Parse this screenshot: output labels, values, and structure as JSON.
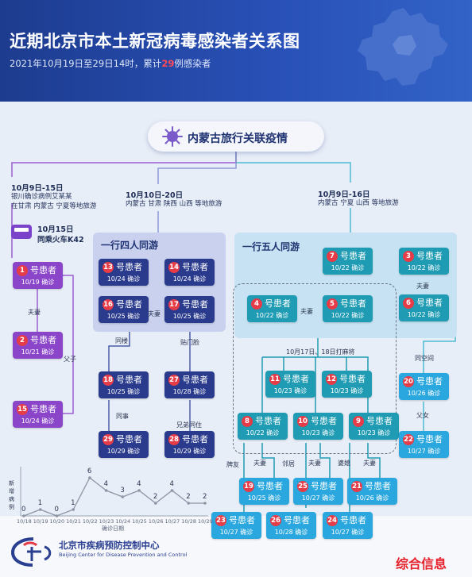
{
  "header": {
    "title": "近期北京市本土新冠病毒感染者关系图",
    "subtitle_prefix": "2021年10月19日至29日14时，累计",
    "subtitle_count": "29",
    "subtitle_suffix": "例感染者"
  },
  "root_label": "内蒙古旅行关联疫情",
  "branches": {
    "left": {
      "date": "10月9日-15日",
      "line1": "银川确诊病例艾某某",
      "line2": "在甘肃 内蒙古 宁夏等地旅游"
    },
    "middle": {
      "date": "10月10日-20日",
      "line1": "内蒙古 甘肃 陕西 山西 等地旅游"
    },
    "right": {
      "date": "10月9日-16日",
      "line1": "内蒙古 宁夏 山西 等地旅游"
    }
  },
  "train": {
    "date": "10月15日",
    "text": "同乘火车K42"
  },
  "groups": {
    "four": "一行四人同游",
    "five": "一行五人同游",
    "mahjong": "10月17日、18日打麻将"
  },
  "patient_word": "号患者",
  "patients": [
    {
      "id": "p1",
      "num": "1",
      "date": "10/19 确诊"
    },
    {
      "id": "p2",
      "num": "2",
      "date": "10/21 确诊"
    },
    {
      "id": "p15",
      "num": "15",
      "date": "10/24 确诊"
    },
    {
      "id": "p13",
      "num": "13",
      "date": "10/24 确诊"
    },
    {
      "id": "p14",
      "num": "14",
      "date": "10/24 确诊"
    },
    {
      "id": "p16",
      "num": "16",
      "date": "10/25 确诊"
    },
    {
      "id": "p17",
      "num": "17",
      "date": "10/25 确诊"
    },
    {
      "id": "p18",
      "num": "18",
      "date": "10/25 确诊"
    },
    {
      "id": "p27",
      "num": "27",
      "date": "10/28 确诊"
    },
    {
      "id": "p29",
      "num": "29",
      "date": "10/29 确诊"
    },
    {
      "id": "p28",
      "num": "28",
      "date": "10/29 确诊"
    },
    {
      "id": "p7",
      "num": "7",
      "date": "10/22 确诊"
    },
    {
      "id": "p3",
      "num": "3",
      "date": "10/22 确诊"
    },
    {
      "id": "p4",
      "num": "4",
      "date": "10/22 确诊"
    },
    {
      "id": "p5",
      "num": "5",
      "date": "10/22 确诊"
    },
    {
      "id": "p6",
      "num": "6",
      "date": "10/22 确诊"
    },
    {
      "id": "p11",
      "num": "11",
      "date": "10/23 确诊"
    },
    {
      "id": "p12",
      "num": "12",
      "date": "10/23 确诊"
    },
    {
      "id": "p20",
      "num": "20",
      "date": "10/26 确诊"
    },
    {
      "id": "p8",
      "num": "8",
      "date": "10/22 确诊"
    },
    {
      "id": "p10",
      "num": "10",
      "date": "10/23 确诊"
    },
    {
      "id": "p9",
      "num": "9",
      "date": "10/23 确诊"
    },
    {
      "id": "p22",
      "num": "22",
      "date": "10/27 确诊"
    },
    {
      "id": "p19",
      "num": "19",
      "date": "10/25 确诊"
    },
    {
      "id": "p25",
      "num": "25",
      "date": "10/27 确诊"
    },
    {
      "id": "p21",
      "num": "21",
      "date": "10/26 确诊"
    },
    {
      "id": "p23",
      "num": "23",
      "date": "10/27 确诊"
    },
    {
      "id": "p26",
      "num": "26",
      "date": "10/28 确诊"
    },
    {
      "id": "p24",
      "num": "24",
      "date": "10/27 确诊"
    }
  ],
  "relations": {
    "r_1_2": "夫妻",
    "r_1_15": "父子",
    "r_16_17": "夫妻",
    "r_16_18": "同楼",
    "r_17_27": "贴门脸",
    "r_18_29": "同事",
    "r_27_28": "兄弟同住",
    "r_4_5": "夫妻",
    "r_3_6": "夫妻",
    "r_6_20": "同空间",
    "r_20_22": "父女",
    "r_8_19": "夫妻",
    "r_8_23": "牌友",
    "r_10_26": "邻居",
    "r_10_25": "夫妻",
    "r_9_24": "婆媳",
    "r_9_21": "夫妻"
  },
  "chart_data": {
    "type": "line",
    "xlabel": "确诊日期",
    "categories": [
      "10/18",
      "10/19",
      "10/20",
      "10/21",
      "10/22",
      "10/23",
      "10/24",
      "10/25",
      "10/26",
      "10/27",
      "10/28",
      "10/29"
    ],
    "values": [
      0,
      1,
      0,
      1,
      6,
      4,
      3,
      4,
      2,
      4,
      2,
      2
    ],
    "ylabel": "新增病例",
    "ylim": [
      0,
      7
    ]
  },
  "footer": {
    "org_cn": "北京市疾病预防控制中心",
    "org_en": "Beijing Center for Disease Prevention and Control",
    "watermark": "综合信息"
  },
  "colors": {
    "purple": "#8a45c9",
    "navy": "#2a3b8d",
    "teal": "#1f9bb3",
    "blue": "#2aa7de",
    "header": "#2445a8",
    "badge": "#e63c48"
  }
}
